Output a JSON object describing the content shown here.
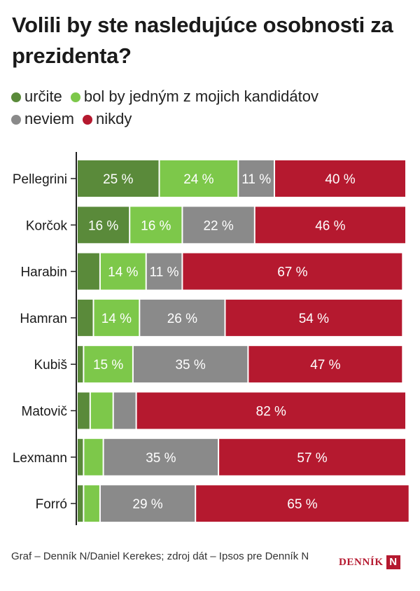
{
  "title": "Volili by ste nasledujúce osobnosti za prezidenta?",
  "footer": {
    "credit": "Graf – Denník N/Daniel Kerekes; zdroj dát – Ipsos pre Denník N",
    "brand_text": "DENNÍK",
    "brand_mark": "N"
  },
  "colors": {
    "urcite": "#5a8a3a",
    "bol_by": "#7dc84a",
    "neviem": "#8a8a8a",
    "nikdy": "#b5192f"
  },
  "chart_data": {
    "type": "bar",
    "orientation": "horizontal",
    "stacked": true,
    "normalized": true,
    "title": "Volili by ste nasledujúce osobnosti za prezidenta?",
    "xlim": [
      0,
      100
    ],
    "unit": "%",
    "categories": [
      "Pellegrini",
      "Korčok",
      "Harabin",
      "Hamran",
      "Kubiš",
      "Matovič",
      "Lexmann",
      "Forró"
    ],
    "series": [
      {
        "name": "určite",
        "key": "urcite",
        "values": [
          25,
          16,
          7,
          5,
          2,
          4,
          2,
          2
        ]
      },
      {
        "name": "bol by jedným z mojich kandidátov",
        "key": "bol_by",
        "values": [
          24,
          16,
          14,
          14,
          15,
          7,
          6,
          5
        ]
      },
      {
        "name": "neviem",
        "key": "neviem",
        "values": [
          11,
          22,
          11,
          26,
          35,
          7,
          35,
          29
        ]
      },
      {
        "name": "nikdy",
        "key": "nikdy",
        "values": [
          40,
          46,
          67,
          54,
          47,
          82,
          57,
          65
        ]
      }
    ],
    "labels": [
      [
        "25 %",
        "24 %",
        "11 %",
        "40 %"
      ],
      [
        "16 %",
        "16 %",
        "22 %",
        "46 %"
      ],
      [
        "",
        "14 %",
        "11 %",
        "67 %"
      ],
      [
        "",
        "14 %",
        "26 %",
        "54 %"
      ],
      [
        "",
        "15 %",
        "35 %",
        "47 %"
      ],
      [
        "",
        "",
        "",
        "82 %"
      ],
      [
        "",
        "",
        "35 %",
        "57 %"
      ],
      [
        "",
        "",
        "29 %",
        "65 %"
      ]
    ]
  }
}
